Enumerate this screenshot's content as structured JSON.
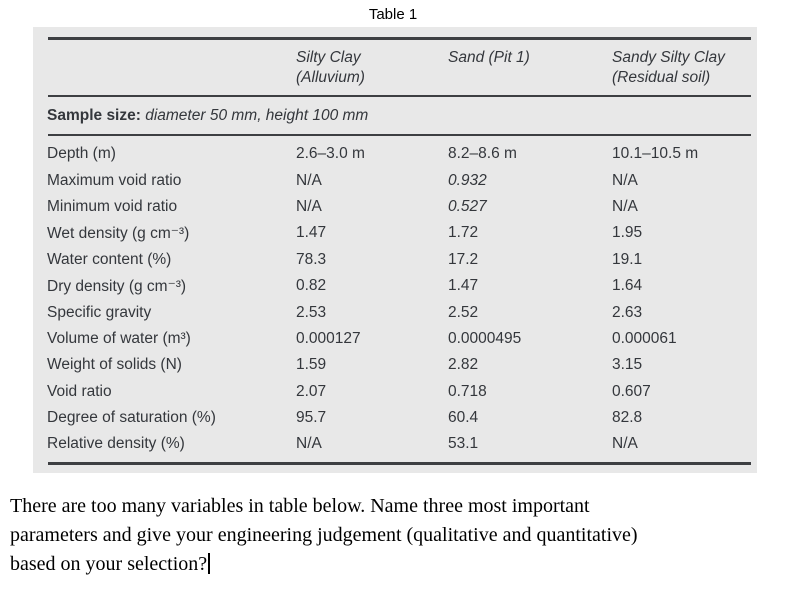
{
  "colors": {
    "table_bg": "#e8e8e8",
    "rule": "#3d3f42",
    "table_text": "#34373c",
    "body_text": "#000000"
  },
  "caption": "Table 1",
  "table": {
    "columns": [
      {
        "line1": "Silty Clay",
        "line2": "(Alluvium)"
      },
      {
        "line1": "Sand (Pit 1)",
        "line2": ""
      },
      {
        "line1": "Sandy Silty Clay",
        "line2": "(Residual soil)"
      }
    ],
    "sample_size": {
      "label": "Sample size:",
      "value": " diameter 50 mm, height 100 mm"
    },
    "rows": [
      {
        "label": "Depth (m)",
        "values": [
          "2.6–3.0 m",
          "8.2–8.6 m",
          "10.1–10.5 m"
        ],
        "italics": [
          false,
          false,
          false
        ]
      },
      {
        "label": "Maximum void ratio",
        "values": [
          "N/A",
          "0.932",
          "N/A"
        ],
        "italics": [
          false,
          true,
          false
        ]
      },
      {
        "label": "Minimum void ratio",
        "values": [
          "N/A",
          "0.527",
          "N/A"
        ],
        "italics": [
          false,
          true,
          false
        ]
      },
      {
        "label": "Wet density (g cm⁻³)",
        "values": [
          "1.47",
          "1.72",
          "1.95"
        ],
        "italics": [
          false,
          false,
          false
        ]
      },
      {
        "label": "Water content (%)",
        "values": [
          "78.3",
          "17.2",
          "19.1"
        ],
        "italics": [
          false,
          false,
          false
        ]
      },
      {
        "label": "Dry density (g cm⁻³)",
        "values": [
          "0.82",
          "1.47",
          "1.64"
        ],
        "italics": [
          false,
          false,
          false
        ]
      },
      {
        "label": "Specific gravity",
        "values": [
          "2.53",
          "2.52",
          "2.63"
        ],
        "italics": [
          false,
          false,
          false
        ]
      },
      {
        "label": "Volume of water (m³)",
        "values": [
          "0.000127",
          "0.0000495",
          "0.000061"
        ],
        "italics": [
          false,
          false,
          false
        ]
      },
      {
        "label": "Weight of solids (N)",
        "values": [
          "1.59",
          "2.82",
          "3.15"
        ],
        "italics": [
          false,
          false,
          false
        ]
      },
      {
        "label": "Void ratio",
        "values": [
          "2.07",
          "0.718",
          "0.607"
        ],
        "italics": [
          false,
          false,
          false
        ]
      },
      {
        "label": "Degree of saturation (%)",
        "values": [
          "95.7",
          "60.4",
          "82.8"
        ],
        "italics": [
          false,
          false,
          false
        ]
      },
      {
        "label": "Relative density (%)",
        "values": [
          "N/A",
          "53.1",
          "N/A"
        ],
        "italics": [
          false,
          false,
          false
        ]
      }
    ]
  },
  "question": {
    "lines": [
      "There are too many variables in table below. Name three most important",
      "parameters and give your engineering judgement (qualitative and quantitative)",
      "based on your selection?"
    ]
  }
}
